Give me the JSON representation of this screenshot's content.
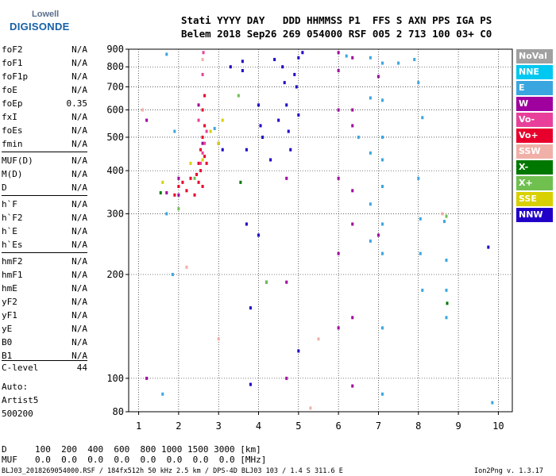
{
  "logo": {
    "line1": "Lowell",
    "line2": "DIGISONDE"
  },
  "header": {
    "line1": "Stati YYYY DAY   DDD HHMMSS P1  FFS S AXN PPS IGA PS",
    "line2": "Belem 2018 Sep26 269 054000 RSF 005 2 713 100 03+ C0"
  },
  "params": [
    {
      "k": "foF2",
      "v": "N/A"
    },
    {
      "k": "foF1",
      "v": "N/A"
    },
    {
      "k": "foF1p",
      "v": "N/A"
    },
    {
      "k": "foE",
      "v": "N/A"
    },
    {
      "k": "foEp",
      "v": "0.35"
    },
    {
      "k": "fxI",
      "v": "N/A"
    },
    {
      "k": "foEs",
      "v": "N/A"
    },
    {
      "k": "fmin",
      "v": "N/A"
    },
    {
      "k": "MUF(D)",
      "v": "N/A"
    },
    {
      "k": "M(D)",
      "v": "N/A"
    },
    {
      "k": "D",
      "v": "N/A"
    },
    {
      "k": "h`F",
      "v": "N/A"
    },
    {
      "k": "h`F2",
      "v": "N/A"
    },
    {
      "k": "h`E",
      "v": "N/A"
    },
    {
      "k": "h`Es",
      "v": "N/A"
    },
    {
      "k": "hmF2",
      "v": "N/A"
    },
    {
      "k": "hmF1",
      "v": "N/A"
    },
    {
      "k": "hmE",
      "v": "N/A"
    },
    {
      "k": "yF2",
      "v": "N/A"
    },
    {
      "k": "yF1",
      "v": "N/A"
    },
    {
      "k": "yE",
      "v": "N/A"
    },
    {
      "k": "B0",
      "v": "N/A"
    },
    {
      "k": "B1",
      "v": "N/A"
    },
    {
      "k": "C-level",
      "v": "44"
    }
  ],
  "auto": [
    "Auto:",
    "Artist5",
    "500200"
  ],
  "footer": {
    "d_label": "D",
    "d_values": "100  200  400  600  800 1000 1500 3000 [km]",
    "muf_label": "MUF",
    "muf_values": "0.0  0.0  0.0  0.0  0.0  0.0  0.0  0.0 [MHz]",
    "info_left": "BLJ03_2018269054000.RSF / 184fx512h 50 kHz 2.5 km / DPS-4D BLJ03 103 / 1.4 S 311.6 E",
    "info_right": "Ion2Png v. 1.3.17"
  },
  "legend": [
    {
      "label": "NoVal",
      "bg": "#a0a0a0",
      "fg": "#ffffff"
    },
    {
      "label": "NNE",
      "bg": "#00c8f0",
      "fg": "#ffffff"
    },
    {
      "label": "E",
      "bg": "#3aa6e0",
      "fg": "#ffffff"
    },
    {
      "label": "W",
      "bg": "#a0009e",
      "fg": "#ffffff"
    },
    {
      "label": "Vo-",
      "bg": "#e8409a",
      "fg": "#ffffff"
    },
    {
      "label": "Vo+",
      "bg": "#e8002c",
      "fg": "#ffffff"
    },
    {
      "label": "SSW",
      "bg": "#f0b0a8",
      "fg": "#ffffff"
    },
    {
      "label": "X-",
      "bg": "#007800",
      "fg": "#ffffff"
    },
    {
      "label": "X+",
      "bg": "#70c050",
      "fg": "#ffffff"
    },
    {
      "label": "SSE",
      "bg": "#d8d000",
      "fg": "#ffffff"
    },
    {
      "label": "NNW",
      "bg": "#2000c8",
      "fg": "#ffffff"
    }
  ],
  "chart_data": {
    "type": "scatter",
    "xlim": [
      0.75,
      10.35
    ],
    "ylim": [
      80,
      900
    ],
    "x_ticks": [
      1,
      2,
      3,
      4,
      5,
      6,
      7,
      8,
      9,
      10
    ],
    "y_ticks": [
      80,
      100,
      200,
      300,
      400,
      500,
      600,
      700,
      800,
      900
    ],
    "y_scale": "log",
    "grid": true,
    "legend_position": "right",
    "series": [
      {
        "name": "W",
        "color": "#a0009e",
        "points": [
          [
            1.2,
            100
          ],
          [
            1.2,
            560
          ],
          [
            1.7,
            345
          ],
          [
            2.0,
            340
          ],
          [
            2.0,
            380
          ],
          [
            2.5,
            620
          ],
          [
            2.6,
            480
          ],
          [
            6.0,
            880
          ],
          [
            6.0,
            780
          ],
          [
            6.0,
            600
          ],
          [
            6.0,
            380
          ],
          [
            6.0,
            230
          ],
          [
            6.0,
            140
          ],
          [
            6.35,
            850
          ],
          [
            6.35,
            600
          ],
          [
            6.35,
            540
          ],
          [
            6.35,
            350
          ],
          [
            6.35,
            280
          ],
          [
            6.35,
            150
          ],
          [
            6.35,
            95
          ],
          [
            7.0,
            750
          ],
          [
            7.0,
            260
          ],
          [
            4.7,
            380
          ],
          [
            4.7,
            190
          ],
          [
            4.7,
            100
          ]
        ]
      },
      {
        "name": "E",
        "color": "#3aa6e0",
        "points": [
          [
            1.6,
            90
          ],
          [
            1.7,
            870
          ],
          [
            1.7,
            300
          ],
          [
            1.85,
            200
          ],
          [
            1.9,
            520
          ],
          [
            2.9,
            530
          ],
          [
            6.2,
            860
          ],
          [
            6.5,
            500
          ],
          [
            6.8,
            850
          ],
          [
            6.8,
            650
          ],
          [
            6.8,
            450
          ],
          [
            6.8,
            320
          ],
          [
            6.8,
            250
          ],
          [
            7.1,
            820
          ],
          [
            7.1,
            640
          ],
          [
            7.1,
            500
          ],
          [
            7.1,
            430
          ],
          [
            7.1,
            360
          ],
          [
            7.1,
            280
          ],
          [
            7.1,
            230
          ],
          [
            7.1,
            140
          ],
          [
            7.1,
            90
          ],
          [
            7.5,
            820
          ],
          [
            7.9,
            840
          ],
          [
            8.0,
            720
          ],
          [
            8.1,
            570
          ],
          [
            8.0,
            380
          ],
          [
            8.05,
            290
          ],
          [
            8.05,
            230
          ],
          [
            8.1,
            180
          ],
          [
            8.65,
            285
          ],
          [
            8.7,
            220
          ],
          [
            8.7,
            180
          ],
          [
            8.7,
            150
          ],
          [
            9.85,
            85
          ]
        ]
      },
      {
        "name": "NNW",
        "color": "#2000c8",
        "points": [
          [
            3.0,
            480
          ],
          [
            3.1,
            460
          ],
          [
            3.3,
            800
          ],
          [
            3.6,
            830
          ],
          [
            3.6,
            780
          ],
          [
            3.7,
            460
          ],
          [
            3.7,
            280
          ],
          [
            3.8,
            160
          ],
          [
            3.8,
            96
          ],
          [
            4.0,
            620
          ],
          [
            4.05,
            540
          ],
          [
            4.1,
            500
          ],
          [
            4.2,
            190
          ],
          [
            4.3,
            430
          ],
          [
            4.4,
            840
          ],
          [
            4.5,
            560
          ],
          [
            4.6,
            800
          ],
          [
            4.65,
            720
          ],
          [
            4.7,
            620
          ],
          [
            4.75,
            520
          ],
          [
            4.8,
            460
          ],
          [
            4.9,
            760
          ],
          [
            4.95,
            700
          ],
          [
            5.0,
            850
          ],
          [
            5.0,
            580
          ],
          [
            5.1,
            880
          ],
          [
            4.0,
            260
          ],
          [
            5.0,
            120
          ],
          [
            9.75,
            240
          ]
        ]
      },
      {
        "name": "Vo+",
        "color": "#e8002c",
        "points": [
          [
            1.9,
            340
          ],
          [
            2.0,
            360
          ],
          [
            2.1,
            370
          ],
          [
            2.2,
            350
          ],
          [
            2.3,
            380
          ],
          [
            2.45,
            390
          ],
          [
            2.5,
            420
          ],
          [
            2.55,
            460
          ],
          [
            2.6,
            500
          ],
          [
            2.65,
            540
          ],
          [
            2.55,
            400
          ],
          [
            2.6,
            360
          ],
          [
            2.65,
            440
          ],
          [
            2.7,
            420
          ],
          [
            2.5,
            370
          ],
          [
            2.4,
            340
          ],
          [
            2.6,
            600
          ],
          [
            2.65,
            660
          ]
        ]
      },
      {
        "name": "Vo-",
        "color": "#e8409a",
        "points": [
          [
            2.55,
            420
          ],
          [
            2.6,
            450
          ],
          [
            2.65,
            480
          ],
          [
            2.7,
            520
          ],
          [
            2.5,
            560
          ],
          [
            2.62,
            880
          ],
          [
            2.6,
            760
          ]
        ]
      },
      {
        "name": "SSW",
        "color": "#f0b0a8",
        "points": [
          [
            1.1,
            600
          ],
          [
            2.2,
            210
          ],
          [
            2.6,
            840
          ],
          [
            3.0,
            130
          ],
          [
            5.3,
            82
          ],
          [
            5.5,
            130
          ],
          [
            8.6,
            300
          ]
        ]
      },
      {
        "name": "X-",
        "color": "#007800",
        "points": [
          [
            1.55,
            345
          ],
          [
            3.55,
            370
          ],
          [
            8.72,
            165
          ]
        ]
      },
      {
        "name": "X+",
        "color": "#70c050",
        "points": [
          [
            2.0,
            310
          ],
          [
            2.4,
            380
          ],
          [
            3.5,
            660
          ],
          [
            4.2,
            190
          ],
          [
            8.7,
            295
          ]
        ]
      },
      {
        "name": "SSE",
        "color": "#d8d000",
        "points": [
          [
            1.6,
            370
          ],
          [
            2.3,
            420
          ],
          [
            2.6,
            430
          ],
          [
            2.8,
            520
          ],
          [
            3.0,
            480
          ],
          [
            3.1,
            560
          ]
        ]
      }
    ]
  }
}
